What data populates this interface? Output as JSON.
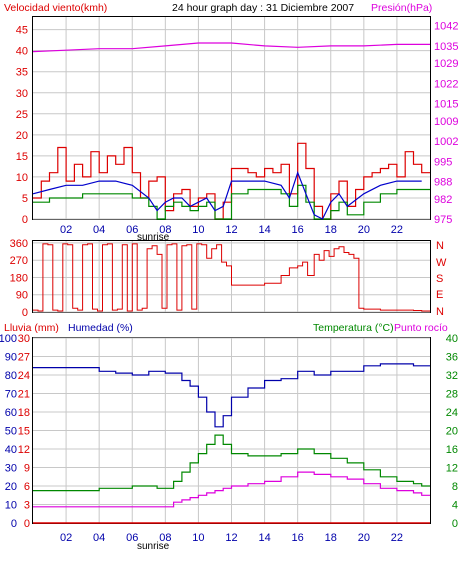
{
  "title": "24 hour graph day : 31 Diciembre 2007",
  "colors": {
    "wind": "#dd0000",
    "wind_avg": "#0000cc",
    "wind_green": "#008800",
    "pressure": "#dd00dd",
    "direction": "#dd0000",
    "humidity": "#0000aa",
    "temperature": "#008800",
    "dewpoint": "#dd00dd",
    "rain": "#dd0000",
    "grid": "#c8c8c8"
  },
  "x_ticks": [
    "02",
    "04",
    "06",
    "08",
    "10",
    "12",
    "14",
    "16",
    "18",
    "20",
    "22"
  ],
  "sunrise_label": "sunrise",
  "chart_data": [
    {
      "type": "line",
      "title": "24 hour graph day : 31 Diciembre 2007",
      "left_label": "Velocidad viento(kmh)",
      "right_label": "Presión(hPa)",
      "y_left_ticks": [
        "0",
        "5",
        "10",
        "15",
        "20",
        "25",
        "30",
        "35",
        "40",
        "45"
      ],
      "y_left_range": [
        0,
        48
      ],
      "y_right_ticks": [
        "975",
        "982",
        "988",
        "995",
        "1002",
        "1009",
        "1015",
        "1022",
        "1029",
        "1035",
        "1042"
      ],
      "y_right_range": [
        975,
        1045
      ],
      "x_range_hours": [
        0,
        24
      ],
      "series": [
        {
          "name": "Velocidad viento(kmh)",
          "x": [
            0,
            0.5,
            1,
            1.5,
            2,
            2.5,
            3,
            3.5,
            4,
            4.5,
            5,
            5.5,
            6,
            6.5,
            7,
            7.5,
            8,
            8.5,
            9,
            9.5,
            10,
            10.5,
            11,
            11.5,
            12,
            12.5,
            13,
            13.5,
            14,
            14.5,
            15,
            15.5,
            16,
            16.5,
            17,
            17.5,
            18,
            18.5,
            19,
            19.5,
            20,
            20.5,
            21,
            21.5,
            22,
            22.5,
            23,
            23.5
          ],
          "values": [
            5,
            9,
            11,
            17,
            9,
            13,
            10,
            16,
            11,
            15,
            13,
            17,
            11,
            5,
            9,
            10,
            2,
            6,
            7,
            3,
            5,
            6,
            0,
            4,
            12,
            12,
            11,
            10,
            12,
            11,
            13,
            6,
            18,
            12,
            3,
            0,
            6,
            9,
            3,
            7,
            10,
            11,
            12,
            13,
            10,
            16,
            13,
            11
          ]
        },
        {
          "name": "",
          "x": [
            0,
            1,
            2,
            3,
            4,
            5,
            6,
            7,
            7.5,
            8,
            8.5,
            9,
            9.5,
            10,
            10.5,
            11,
            11.5,
            12,
            13,
            14,
            15,
            15.5,
            16,
            16.5,
            17,
            17.5,
            18,
            18.5,
            19,
            20,
            21,
            22,
            23,
            23.5
          ],
          "values": [
            6,
            7,
            8,
            8,
            9,
            9,
            8,
            5,
            2,
            4,
            5,
            5,
            3,
            4,
            5,
            2,
            3,
            9,
            9,
            9,
            8,
            5,
            11,
            6,
            1,
            0,
            4,
            6,
            3,
            6,
            8,
            9,
            9,
            9
          ]
        },
        {
          "name": "",
          "x": [
            0,
            1,
            2,
            3,
            4,
            5,
            6,
            7,
            7.5,
            8,
            8.5,
            9,
            9.5,
            10,
            10.5,
            11,
            11.5,
            12,
            13,
            14,
            15,
            15.5,
            16,
            16.5,
            17,
            17.5,
            18,
            18.5,
            19,
            20,
            21,
            22,
            23,
            23.5
          ],
          "values": [
            4,
            5,
            5,
            6,
            6,
            6,
            5,
            3,
            0,
            3,
            4,
            3,
            2,
            3,
            4,
            0,
            0,
            6,
            7,
            7,
            6,
            3,
            8,
            4,
            0,
            0,
            2,
            4,
            1,
            4,
            6,
            7,
            7,
            7
          ]
        },
        {
          "name": "Presión(hPa)",
          "x": [
            0,
            2,
            4,
            6,
            8,
            10,
            11,
            12,
            14,
            16,
            18,
            20,
            22,
            24
          ],
          "values": [
            1033,
            1033.5,
            1034,
            1034,
            1035,
            1036,
            1036,
            1036,
            1035,
            1034.5,
            1035,
            1035,
            1035.5,
            1035.5
          ]
        }
      ]
    },
    {
      "type": "line",
      "left_label": "",
      "y_left_ticks": [
        "0",
        "90",
        "180",
        "270",
        "360"
      ],
      "y_left_range": [
        0,
        370
      ],
      "y_right_ticks": [
        "N",
        "W",
        "S",
        "E",
        "N"
      ],
      "series": [
        {
          "name": "",
          "x": [
            0,
            0.3,
            0.6,
            0.9,
            1.2,
            1.5,
            1.8,
            2.1,
            2.4,
            2.7,
            3,
            3.3,
            3.6,
            3.9,
            4.2,
            4.5,
            4.8,
            5.1,
            5.4,
            5.7,
            6,
            6.3,
            6.6,
            6.9,
            7.2,
            7.5,
            7.8,
            8.1,
            8.4,
            8.7,
            9,
            9.3,
            9.6,
            9.9,
            10.2,
            10.5,
            10.8,
            11.1,
            11.4,
            11.7,
            12,
            13,
            14,
            15,
            15.5,
            16,
            16.3,
            16.6,
            17,
            17.3,
            17.6,
            17.9,
            18.2,
            18.5,
            18.8,
            19.1,
            19.4,
            19.7,
            20,
            21,
            22,
            23,
            23.5
          ],
          "values": [
            10,
            5,
            355,
            350,
            10,
            5,
            355,
            350,
            20,
            10,
            350,
            355,
            15,
            5,
            350,
            355,
            10,
            15,
            350,
            5,
            355,
            10,
            20,
            330,
            345,
            300,
            20,
            350,
            355,
            10,
            345,
            350,
            15,
            355,
            350,
            280,
            330,
            350,
            260,
            240,
            140,
            140,
            150,
            190,
            230,
            240,
            260,
            190,
            300,
            270,
            320,
            290,
            330,
            340,
            310,
            300,
            280,
            20,
            15,
            10,
            10,
            8,
            5
          ]
        }
      ]
    },
    {
      "type": "line",
      "left_label": "Lluvia (mm)",
      "left2_label": "Humedad (%)",
      "right_label": "Temperatura (°C)",
      "right2_label": "Punto rocío",
      "y_rain_ticks": [
        "0",
        "3",
        "6",
        "9",
        "12",
        "15",
        "18",
        "21",
        "24",
        "27",
        "30"
      ],
      "y_hum_ticks": [
        "0",
        "10",
        "20",
        "30",
        "40",
        "50",
        "60",
        "70",
        "80",
        "90",
        "100"
      ],
      "y_temp_ticks": [
        "0",
        "4",
        "8",
        "12",
        "16",
        "20",
        "24",
        "28",
        "32",
        "36",
        "40"
      ],
      "series": [
        {
          "name": "Humedad (%)",
          "x": [
            0,
            1,
            2,
            3,
            4,
            5,
            6,
            7,
            8,
            9,
            9.5,
            10,
            10.5,
            11,
            11.5,
            12,
            13,
            14,
            15,
            16,
            17,
            18,
            19,
            20,
            21,
            22,
            23,
            23.5
          ],
          "values": [
            84,
            84,
            84,
            84,
            82,
            81,
            80,
            82,
            81,
            77,
            74,
            68,
            60,
            52,
            58,
            68,
            73,
            77,
            78,
            82,
            80,
            82,
            82,
            85,
            86,
            86,
            85,
            85
          ]
        },
        {
          "name": "Temperatura (°C)",
          "x": [
            0,
            1,
            2,
            3,
            4,
            5,
            6,
            7,
            7.5,
            8,
            8.5,
            9,
            9.5,
            10,
            10.5,
            11,
            11.5,
            12,
            13,
            14,
            15,
            16,
            17,
            18,
            19,
            20,
            21,
            22,
            23,
            23.5
          ],
          "values": [
            7,
            7,
            7,
            7,
            7.5,
            7.5,
            8,
            8,
            7.5,
            7.5,
            9,
            11,
            13,
            15,
            17,
            19,
            17,
            15,
            14.5,
            14.5,
            15,
            16,
            15,
            14,
            13,
            11.5,
            10,
            9,
            8.5,
            8
          ]
        },
        {
          "name": "Punto rocío",
          "x": [
            0,
            1,
            2,
            3,
            4,
            5,
            6,
            7,
            7.5,
            8,
            8.5,
            9,
            9.5,
            10,
            10.5,
            11,
            11.5,
            12,
            13,
            14,
            15,
            16,
            17,
            18,
            19,
            20,
            21,
            22,
            23,
            23.5
          ],
          "values": [
            3.5,
            3.5,
            3.5,
            3.5,
            3.5,
            3.5,
            3.5,
            3.5,
            3.5,
            3.5,
            4.5,
            5,
            5.5,
            6,
            6.5,
            7,
            7.5,
            8,
            8.5,
            9,
            10,
            11,
            10.5,
            10,
            9.5,
            8.5,
            7.5,
            7,
            6.5,
            6
          ]
        },
        {
          "name": "Lluvia (mm)",
          "x": [
            0,
            24
          ],
          "values": [
            0,
            0
          ]
        }
      ]
    }
  ]
}
